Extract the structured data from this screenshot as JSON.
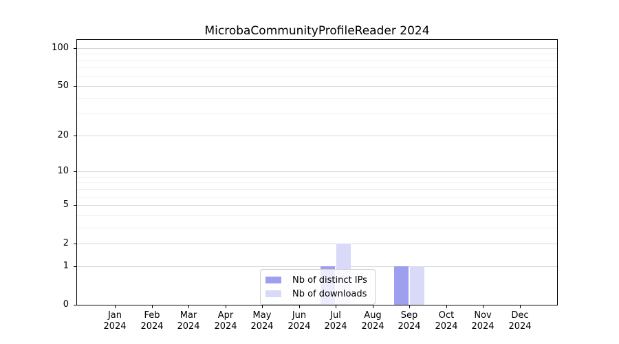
{
  "title": "MicrobaCommunityProfileReader 2024",
  "chart_data": {
    "type": "bar",
    "title": "MicrobaCommunityProfileReader 2024",
    "categories": [
      "Jan 2024",
      "Feb 2024",
      "Mar 2024",
      "Apr 2024",
      "May 2024",
      "Jun 2024",
      "Jul 2024",
      "Aug 2024",
      "Sep 2024",
      "Oct 2024",
      "Nov 2024",
      "Dec 2024"
    ],
    "series": [
      {
        "name": "Nb of distinct IPs",
        "color": "#9f9ff0",
        "values": [
          0,
          0,
          0,
          0,
          0,
          0,
          1,
          0,
          1,
          0,
          0,
          0
        ]
      },
      {
        "name": "Nb of downloads",
        "color": "#d9d9f8",
        "values": [
          0,
          0,
          0,
          0,
          0,
          0,
          2,
          0,
          1,
          0,
          0,
          0
        ]
      }
    ],
    "xlabel": "",
    "ylabel": "",
    "yscale": "log1p",
    "ylim": [
      0,
      100
    ],
    "yticks": [
      0,
      1,
      2,
      5,
      10,
      20,
      50,
      100
    ],
    "grid": {
      "major_color": "#d8d8d8",
      "minor_color": "#f0f0f0",
      "orientation": "horizontal"
    },
    "legend": {
      "position": "lower center",
      "entries": [
        "Nb of distinct IPs",
        "Nb of downloads"
      ]
    }
  }
}
